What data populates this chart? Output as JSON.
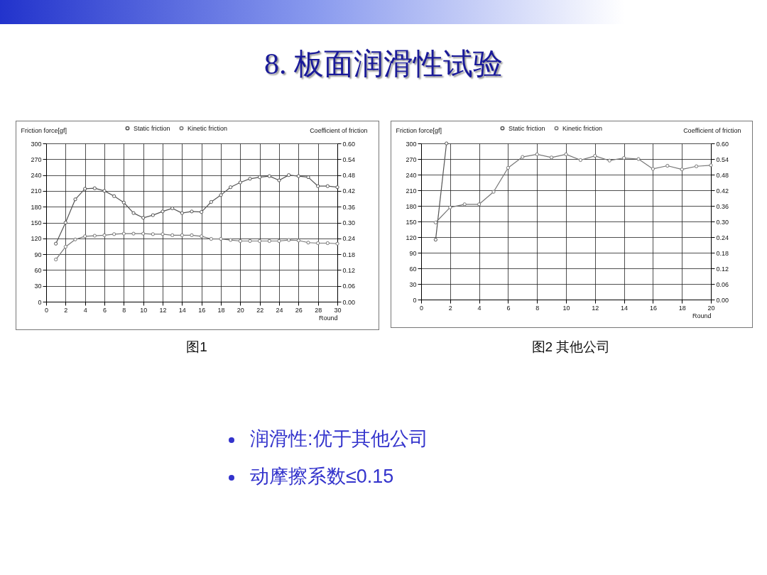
{
  "chart_data": [
    {
      "type": "line",
      "title": "8. 板面润滑性试验",
      "xlabel": "Round",
      "ylabel": "Friction force[gf]",
      "y2label": "Coefficient of friction",
      "annotations": [
        "图1"
      ],
      "x": [
        1,
        2,
        3,
        4,
        5,
        6,
        7,
        8,
        9,
        10,
        11,
        12,
        13,
        14,
        15,
        16,
        17,
        18,
        19,
        20,
        21,
        22,
        23,
        24,
        25,
        26,
        27,
        28,
        29,
        30
      ],
      "series": [
        {
          "name": "Static friction",
          "color": "#555555",
          "values": [
            110,
            150,
            194,
            214,
            215,
            210,
            200,
            188,
            168,
            159,
            164,
            171,
            177,
            168,
            171,
            170,
            189,
            202,
            217,
            226,
            233,
            236,
            238,
            230,
            240,
            238,
            236,
            219,
            219,
            217
          ]
        },
        {
          "name": "Kinetic friction",
          "color": "#777777",
          "values": [
            80,
            104,
            118,
            124,
            125,
            126,
            128,
            129,
            129,
            129,
            128,
            128,
            126,
            126,
            126,
            124,
            119,
            119,
            117,
            115,
            115,
            115,
            115,
            115,
            117,
            116,
            112,
            111,
            111,
            110
          ]
        }
      ],
      "xlim": [
        0,
        30
      ],
      "xticks": [
        0,
        2,
        4,
        6,
        8,
        10,
        12,
        14,
        16,
        18,
        20,
        22,
        24,
        26,
        28,
        30
      ],
      "ylim": [
        0,
        300
      ],
      "yticks": [
        0,
        30,
        60,
        90,
        120,
        150,
        180,
        210,
        240,
        270,
        300
      ],
      "y2lim": [
        0,
        0.6
      ],
      "y2ticks": [
        {
          "value": 0,
          "label": "0.00"
        },
        0.06,
        0.12,
        0.18,
        0.24,
        {
          "value": 0.3,
          "label": "0.30"
        },
        0.36,
        0.42,
        0.48,
        0.54,
        {
          "value": 0.6,
          "label": "0.60"
        }
      ],
      "grid": true,
      "legend": "top",
      "marker": "circle"
    },
    {
      "type": "line",
      "xlabel": "Round",
      "ylabel": "Friction force[gf]",
      "y2label": "Coefficient of friction",
      "annotations": [
        "图2 其他公司",
        "润滑性:优于其他公司",
        "动摩擦系数≤0.15"
      ],
      "x": [
        1,
        2,
        3,
        4,
        5,
        6,
        7,
        8,
        9,
        10,
        11,
        12,
        13,
        14,
        15,
        16,
        17,
        18,
        19,
        20
      ],
      "series": [
        {
          "name": "Static friction",
          "color": "#555555",
          "x": [
            1,
            1.75
          ],
          "values": [
            115,
            300
          ]
        },
        {
          "name": "Kinetic friction",
          "color": "#777777",
          "values": [
            148,
            177,
            183,
            183,
            207,
            253,
            274,
            279,
            273,
            279,
            268,
            276,
            267,
            272,
            270,
            251,
            257,
            250,
            256,
            258
          ]
        }
      ],
      "xlim": [
        0,
        20
      ],
      "xticks": [
        0,
        2,
        4,
        6,
        8,
        10,
        12,
        14,
        16,
        18,
        20
      ],
      "ylim": [
        0,
        300
      ],
      "yticks": [
        0,
        30,
        60,
        90,
        120,
        150,
        180,
        210,
        240,
        270,
        300
      ],
      "y2lim": [
        0,
        0.6
      ],
      "y2ticks": [
        {
          "value": 0,
          "label": "0.00"
        },
        0.06,
        0.12,
        0.18,
        0.24,
        {
          "value": 0.3,
          "label": "0.30"
        },
        0.36,
        0.42,
        0.48,
        0.54,
        {
          "value": 0.6,
          "label": "0.60"
        }
      ],
      "grid": true,
      "legend": "top",
      "marker": "circle"
    }
  ]
}
